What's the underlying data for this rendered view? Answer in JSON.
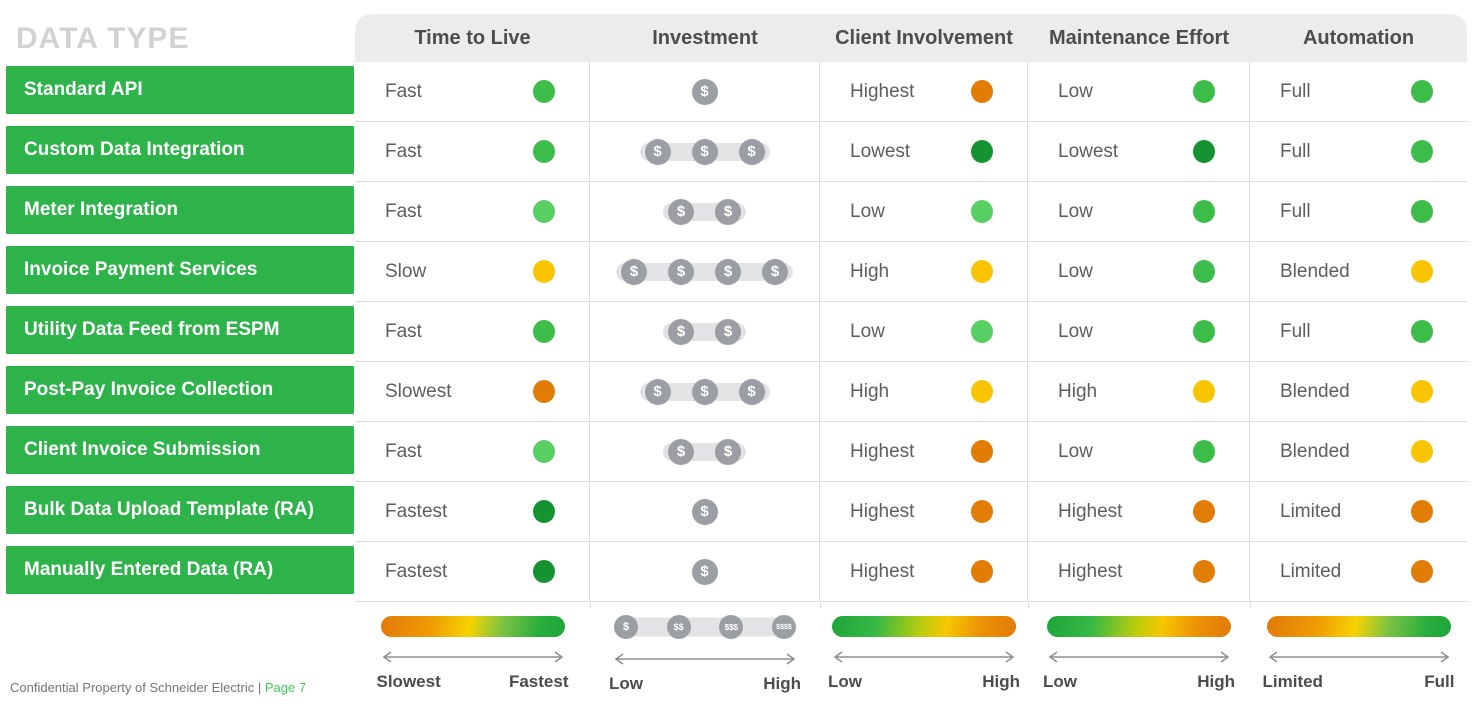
{
  "title": "DATA TYPE",
  "coin_symbol": "$",
  "palette": {
    "green": "#3cbd4a",
    "light_green": "#57cf63",
    "dark_green": "#149330",
    "yellow": "#f9c502",
    "orange": "#e17d05"
  },
  "columns": [
    {
      "label": "Time to Live"
    },
    {
      "label": "Investment"
    },
    {
      "label": "Client Involvement"
    },
    {
      "label": "Maintenance Effort"
    },
    {
      "label": "Automation"
    }
  ],
  "rows": [
    {
      "label": "Standard API",
      "time_to_live": {
        "text": "Fast",
        "color": "green"
      },
      "investment": 1,
      "client_involvement": {
        "text": "Highest",
        "color": "orange"
      },
      "maintenance_effort": {
        "text": "Low",
        "color": "green"
      },
      "automation": {
        "text": "Full",
        "color": "green"
      }
    },
    {
      "label": "Custom Data Integration",
      "time_to_live": {
        "text": "Fast",
        "color": "green"
      },
      "investment": 3,
      "client_involvement": {
        "text": "Lowest",
        "color": "dark_green"
      },
      "maintenance_effort": {
        "text": "Lowest",
        "color": "dark_green"
      },
      "automation": {
        "text": "Full",
        "color": "green"
      }
    },
    {
      "label": "Meter Integration",
      "time_to_live": {
        "text": "Fast",
        "color": "light_green"
      },
      "investment": 2,
      "client_involvement": {
        "text": "Low",
        "color": "light_green"
      },
      "maintenance_effort": {
        "text": "Low",
        "color": "green"
      },
      "automation": {
        "text": "Full",
        "color": "green"
      }
    },
    {
      "label": "Invoice Payment Services",
      "time_to_live": {
        "text": "Slow",
        "color": "yellow"
      },
      "investment": 4,
      "client_involvement": {
        "text": "High",
        "color": "yellow"
      },
      "maintenance_effort": {
        "text": "Low",
        "color": "green"
      },
      "automation": {
        "text": "Blended",
        "color": "yellow"
      }
    },
    {
      "label": "Utility Data Feed from ESPM",
      "time_to_live": {
        "text": "Fast",
        "color": "green"
      },
      "investment": 2,
      "client_involvement": {
        "text": "Low",
        "color": "light_green"
      },
      "maintenance_effort": {
        "text": "Low",
        "color": "green"
      },
      "automation": {
        "text": "Full",
        "color": "green"
      }
    },
    {
      "label": "Post-Pay Invoice Collection",
      "time_to_live": {
        "text": "Slowest",
        "color": "orange"
      },
      "investment": 3,
      "client_involvement": {
        "text": "High",
        "color": "yellow"
      },
      "maintenance_effort": {
        "text": "High",
        "color": "yellow"
      },
      "automation": {
        "text": "Blended",
        "color": "yellow"
      }
    },
    {
      "label": "Client Invoice Submission",
      "time_to_live": {
        "text": "Fast",
        "color": "light_green"
      },
      "investment": 2,
      "client_involvement": {
        "text": "Highest",
        "color": "orange"
      },
      "maintenance_effort": {
        "text": "Low",
        "color": "green"
      },
      "automation": {
        "text": "Blended",
        "color": "yellow"
      }
    },
    {
      "label": "Bulk Data Upload Template (RA)",
      "time_to_live": {
        "text": "Fastest",
        "color": "dark_green"
      },
      "investment": 1,
      "client_involvement": {
        "text": "Highest",
        "color": "orange"
      },
      "maintenance_effort": {
        "text": "Highest",
        "color": "orange"
      },
      "automation": {
        "text": "Limited",
        "color": "orange"
      }
    },
    {
      "label": "Manually Entered Data (RA)",
      "time_to_live": {
        "text": "Fastest",
        "color": "dark_green"
      },
      "investment": 1,
      "client_involvement": {
        "text": "Highest",
        "color": "orange"
      },
      "maintenance_effort": {
        "text": "Highest",
        "color": "orange"
      },
      "automation": {
        "text": "Limited",
        "color": "orange"
      }
    }
  ],
  "legends": [
    {
      "kind": "gradient",
      "gradient": "orange-green",
      "left": "Slowest",
      "right": "Fastest"
    },
    {
      "kind": "coins",
      "coins": [
        "$",
        "$$",
        "$$$",
        "$$$$"
      ],
      "left": "Low",
      "right": "High"
    },
    {
      "kind": "gradient",
      "gradient": "green-orange",
      "left": "Low",
      "right": "High"
    },
    {
      "kind": "gradient",
      "gradient": "green-orange",
      "left": "Low",
      "right": "High"
    },
    {
      "kind": "gradient",
      "gradient": "orange-green",
      "left": "Limited",
      "right": "Full"
    }
  ],
  "footer": {
    "text": "Confidential Property of Schneider Electric",
    "separator": "|",
    "page": "Page 7"
  }
}
